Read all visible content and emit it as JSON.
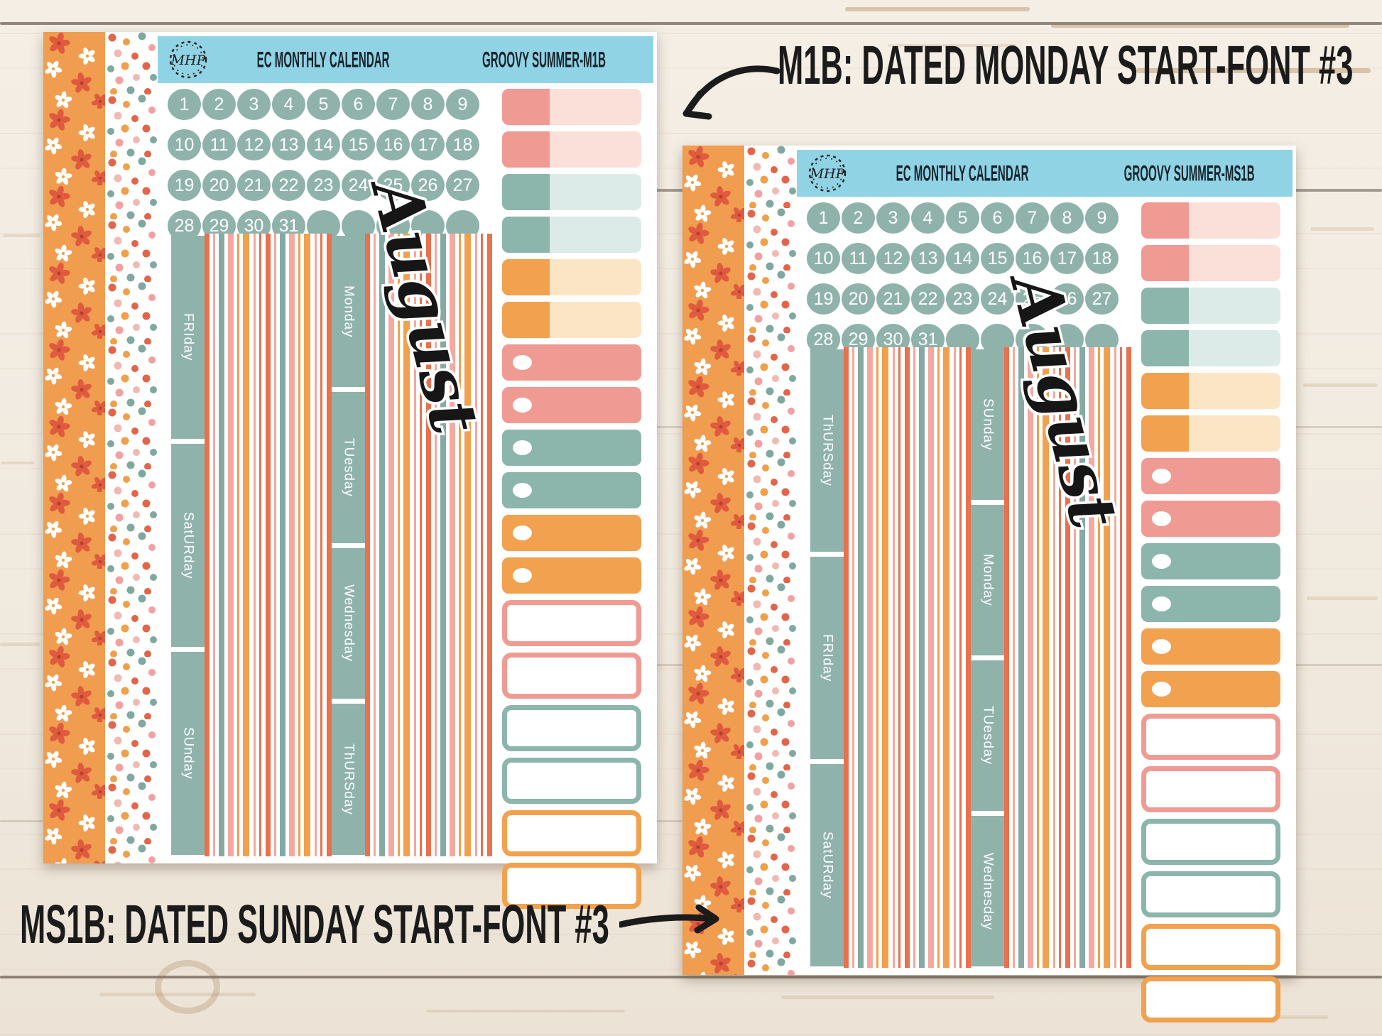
{
  "photo": {
    "annotations": {
      "m1b_label": "M1B: DATED MONDAY START-FONT #3",
      "ms1b_label": "MS1B: DATED SUNDAY START-FONT #3"
    },
    "sheets": [
      {
        "sheet_id": "M1B",
        "brand_logo": "MHP",
        "header_title": "EC MONTHLY CALENDAR",
        "header_code": "GROOVY SUMMER-M1B",
        "month_script": "August",
        "date_numbers": [
          "1",
          "2",
          "3",
          "4",
          "5",
          "6",
          "7",
          "8",
          "9",
          "10",
          "11",
          "12",
          "13",
          "14",
          "15",
          "16",
          "17",
          "18",
          "19",
          "20",
          "21",
          "22",
          "23",
          "24",
          "25",
          "26",
          "27",
          "28",
          "29",
          "30",
          "31"
        ],
        "blank_date_circles": 5,
        "weekday_strip_left": [
          "FRIday",
          "SatURday",
          "SUnday"
        ],
        "weekday_strip_right": [
          "Monday",
          "TUesday",
          "Wednesday",
          "ThURSday"
        ]
      },
      {
        "sheet_id": "MS1B",
        "brand_logo": "MHP",
        "header_title": "EC MONTHLY CALENDAR",
        "header_code": "GROOVY SUMMER-MS1B",
        "month_script": "August",
        "date_numbers": [
          "1",
          "2",
          "3",
          "4",
          "5",
          "6",
          "7",
          "8",
          "9",
          "10",
          "11",
          "12",
          "13",
          "14",
          "15",
          "16",
          "17",
          "18",
          "19",
          "20",
          "21",
          "22",
          "23",
          "24",
          "25",
          "26",
          "27",
          "28",
          "29",
          "30",
          "31"
        ],
        "blank_date_circles": 5,
        "weekday_strip_left": [
          "ThURSday",
          "FRIday",
          "SatURday"
        ],
        "weekday_strip_right": [
          "SUnday",
          "Monday",
          "TUesday",
          "Wednesday"
        ]
      }
    ],
    "swatch_stickers": [
      {
        "style": "two-tone",
        "color": "pink"
      },
      {
        "style": "two-tone",
        "color": "pink"
      },
      {
        "style": "two-tone",
        "color": "teal"
      },
      {
        "style": "two-tone",
        "color": "teal"
      },
      {
        "style": "two-tone",
        "color": "orange"
      },
      {
        "style": "two-tone",
        "color": "orange"
      },
      {
        "style": "dot",
        "color": "pink"
      },
      {
        "style": "dot",
        "color": "pink"
      },
      {
        "style": "dot",
        "color": "teal"
      },
      {
        "style": "dot",
        "color": "teal"
      },
      {
        "style": "dot",
        "color": "orange"
      },
      {
        "style": "dot",
        "color": "orange"
      },
      {
        "style": "outline",
        "color": "pink"
      },
      {
        "style": "outline",
        "color": "pink"
      },
      {
        "style": "outline",
        "color": "teal"
      },
      {
        "style": "outline",
        "color": "teal"
      },
      {
        "style": "outline",
        "color": "orange"
      },
      {
        "style": "outline",
        "color": "orange"
      }
    ],
    "palette": {
      "header_blue": "#90d3e5",
      "sage_circle": "#8fb3ab",
      "pink": "#ef9b94",
      "pink_light": "#fbdfd9",
      "teal": "#8cb5ac",
      "teal_light": "#dcebe7",
      "orange": "#f2a14f",
      "orange_light": "#fce5c5",
      "coral_stripe": "#e8714e",
      "washi_orange": "#f09d50",
      "ink": "#1b1b1b"
    }
  }
}
